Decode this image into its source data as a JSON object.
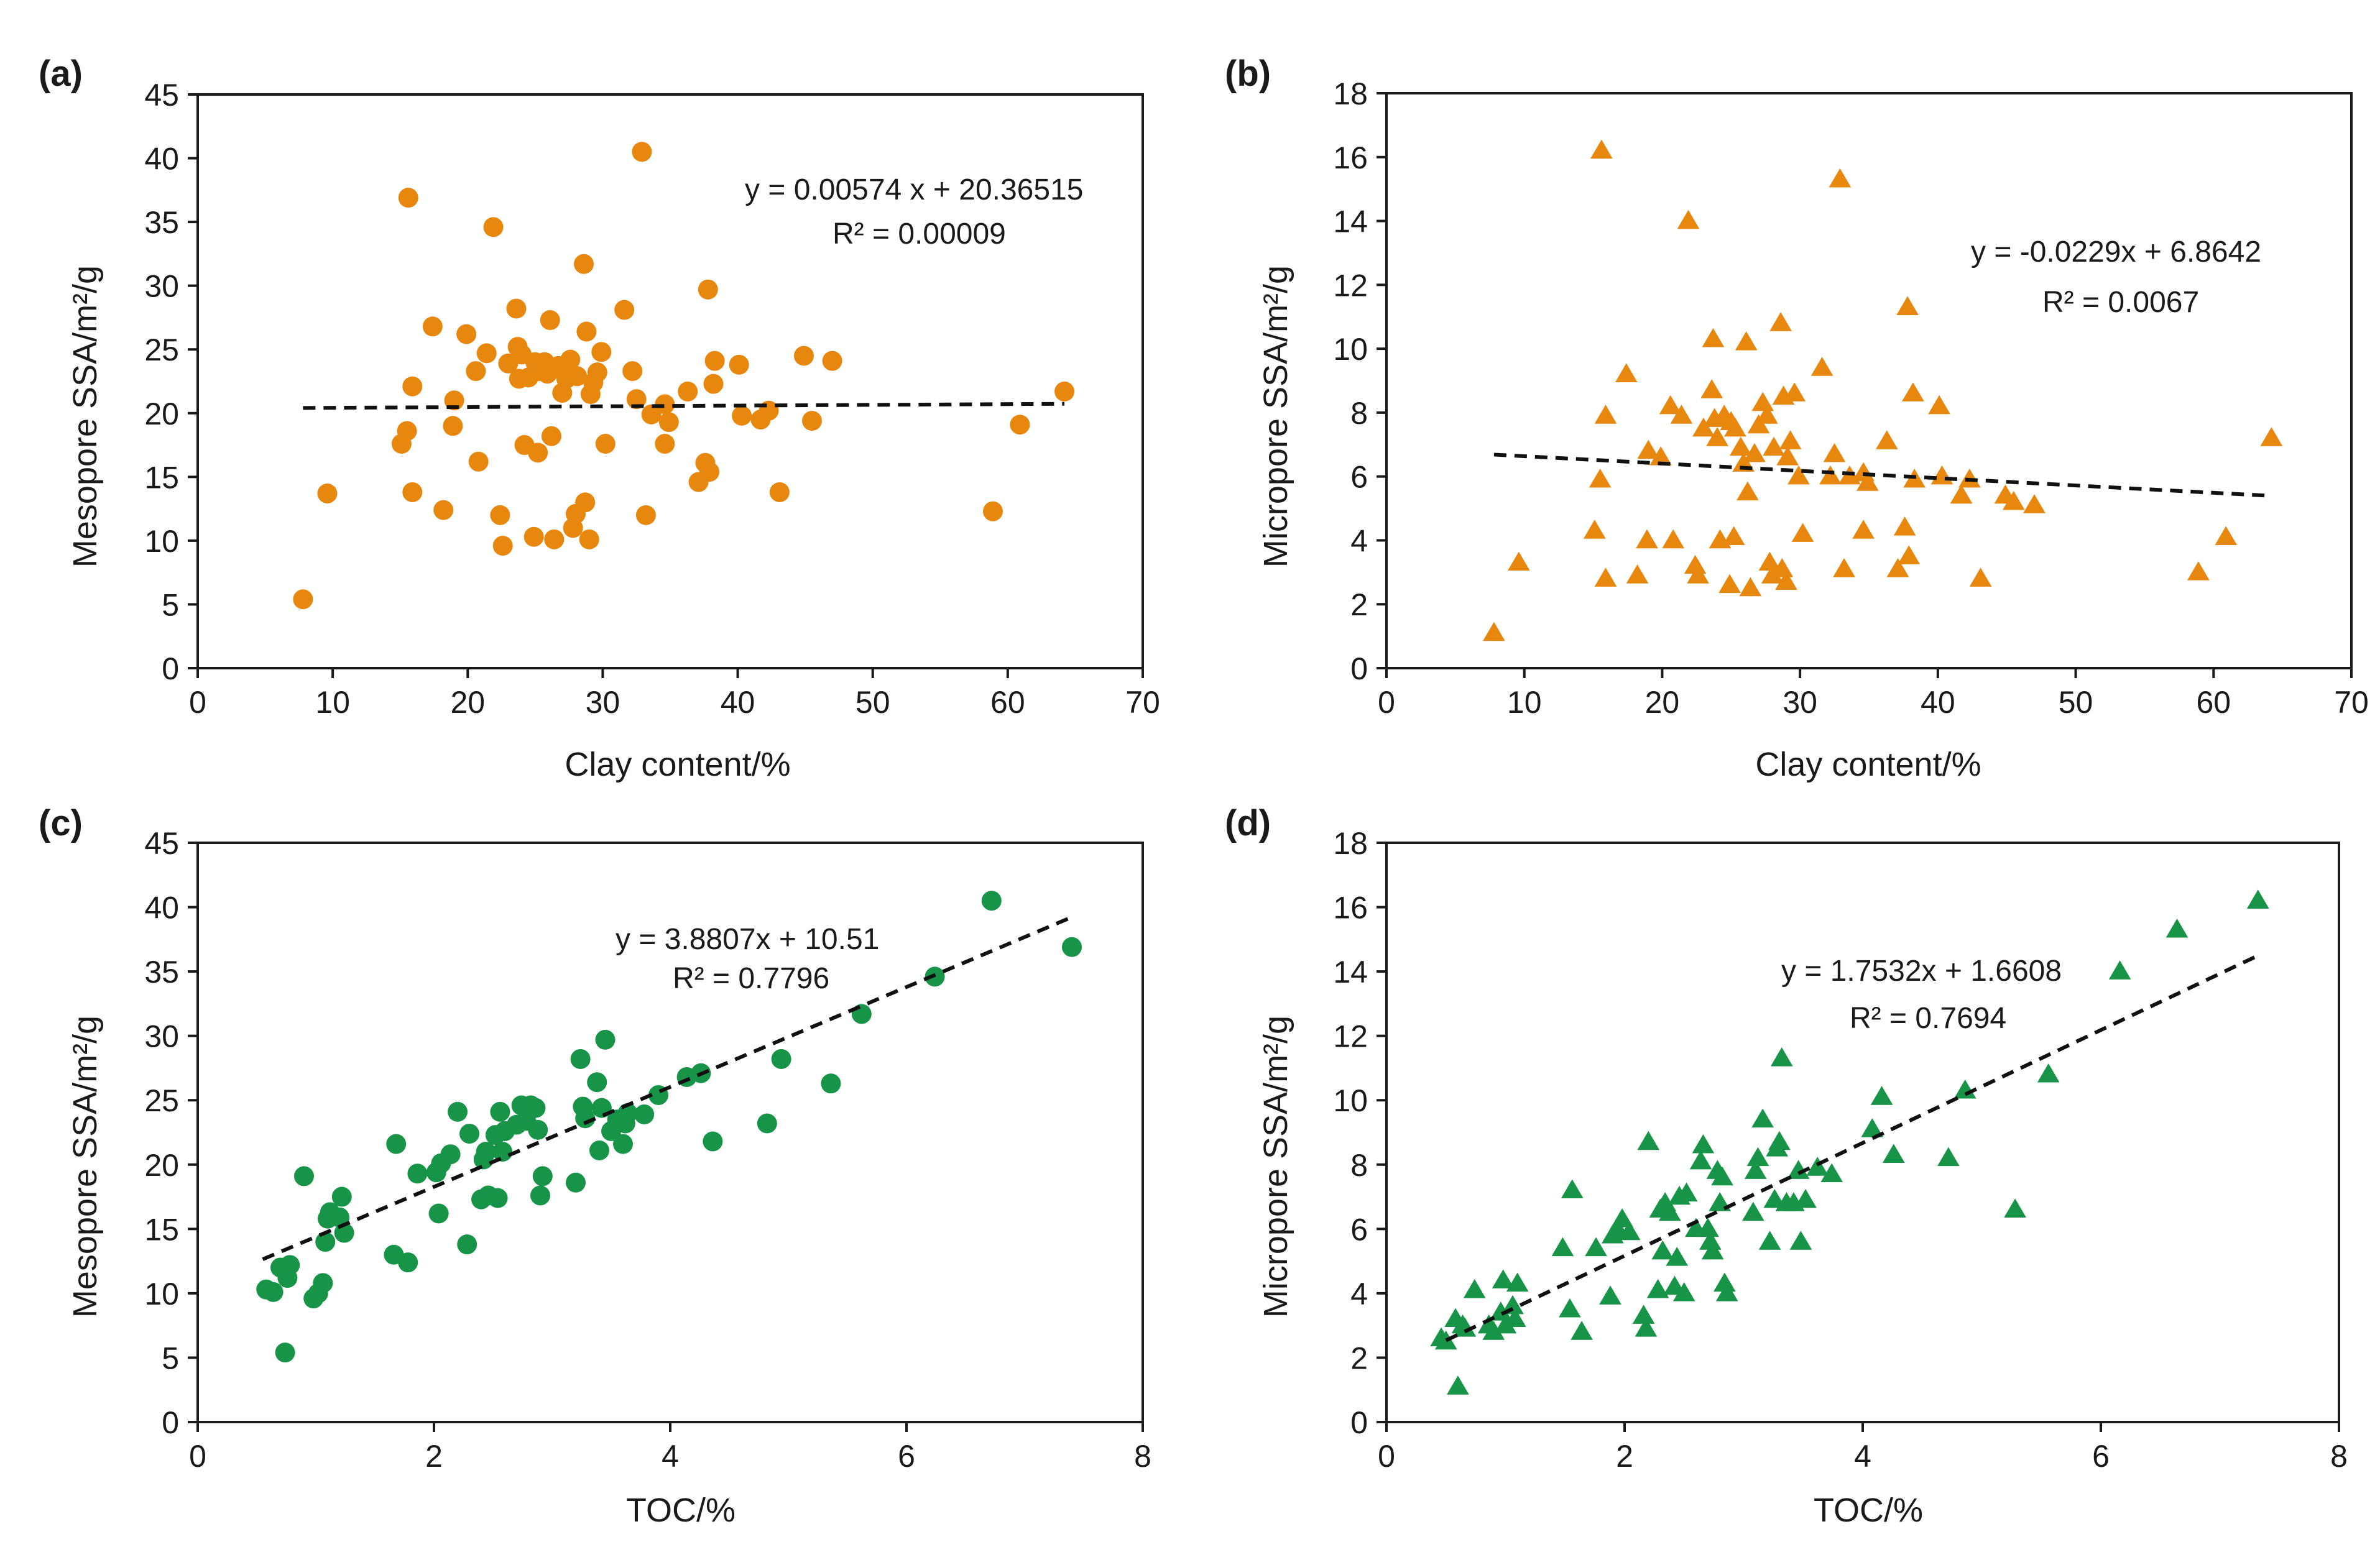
{
  "colors": {
    "orange": "#E8870E",
    "green": "#179447",
    "axis": "#1a1a1a",
    "trend": "#111111"
  },
  "chart_data": [
    {
      "id": "a",
      "panel_label": "(a)",
      "type": "scatter",
      "marker": "circle",
      "color": "#E8870E",
      "xlabel": "Clay content/%",
      "ylabel": "Mesopore SSA/m²/g",
      "xlim": [
        0,
        70
      ],
      "ylim": [
        0,
        45
      ],
      "xticks": [
        "0",
        "10",
        "20",
        "30",
        "40",
        "50",
        "60",
        "70"
      ],
      "yticks": [
        "0",
        "5",
        "10",
        "15",
        "20",
        "25",
        "30",
        "35",
        "40",
        "45"
      ],
      "trendline": {
        "slope": 0.00574,
        "intercept": 20.36515,
        "x_range": [
          7.8,
          64.2
        ]
      },
      "equation": "y = 0.00574 x + 20.36515",
      "r2": "R² = 0.00009",
      "points": [
        [
          7.8,
          5.4
        ],
        [
          9.6,
          13.7
        ],
        [
          15.1,
          17.6
        ],
        [
          15.5,
          18.6
        ],
        [
          15.6,
          36.9
        ],
        [
          15.9,
          22.1
        ],
        [
          15.9,
          13.8
        ],
        [
          17.4,
          26.8
        ],
        [
          18.2,
          12.4
        ],
        [
          18.9,
          19.0
        ],
        [
          19.0,
          21.0
        ],
        [
          19.9,
          26.2
        ],
        [
          20.6,
          23.3
        ],
        [
          20.8,
          16.2
        ],
        [
          21.4,
          24.7
        ],
        [
          21.9,
          34.6
        ],
        [
          22.4,
          12.0
        ],
        [
          22.6,
          9.6
        ],
        [
          23.0,
          23.9
        ],
        [
          23.6,
          28.2
        ],
        [
          23.7,
          25.2
        ],
        [
          23.8,
          22.7
        ],
        [
          24.0,
          24.6
        ],
        [
          24.2,
          17.5
        ],
        [
          24.5,
          22.8
        ],
        [
          24.9,
          10.3
        ],
        [
          25.0,
          24.0
        ],
        [
          25.2,
          16.9
        ],
        [
          25.3,
          23.3
        ],
        [
          25.7,
          24.0
        ],
        [
          25.9,
          23.1
        ],
        [
          26.1,
          27.3
        ],
        [
          26.2,
          18.2
        ],
        [
          26.4,
          10.1
        ],
        [
          26.7,
          23.7
        ],
        [
          27.0,
          21.6
        ],
        [
          27.3,
          22.7
        ],
        [
          27.6,
          24.2
        ],
        [
          27.8,
          11.0
        ],
        [
          28.0,
          12.1
        ],
        [
          28.1,
          22.9
        ],
        [
          28.6,
          31.7
        ],
        [
          28.7,
          13.0
        ],
        [
          28.8,
          26.4
        ],
        [
          29.0,
          10.1
        ],
        [
          29.1,
          21.5
        ],
        [
          29.3,
          22.4
        ],
        [
          29.6,
          23.2
        ],
        [
          29.9,
          24.8
        ],
        [
          30.2,
          17.6
        ],
        [
          31.6,
          28.1
        ],
        [
          32.2,
          23.3
        ],
        [
          32.5,
          21.1
        ],
        [
          32.9,
          40.5
        ],
        [
          33.2,
          12.0
        ],
        [
          33.6,
          19.9
        ],
        [
          34.6,
          20.7
        ],
        [
          34.9,
          19.3
        ],
        [
          34.6,
          17.6
        ],
        [
          36.3,
          21.7
        ],
        [
          37.1,
          14.6
        ],
        [
          37.6,
          16.1
        ],
        [
          37.8,
          29.7
        ],
        [
          37.9,
          15.4
        ],
        [
          38.2,
          22.3
        ],
        [
          38.3,
          24.1
        ],
        [
          40.1,
          23.8
        ],
        [
          40.3,
          19.8
        ],
        [
          41.7,
          19.5
        ],
        [
          42.3,
          20.2
        ],
        [
          43.1,
          13.8
        ],
        [
          44.9,
          24.5
        ],
        [
          45.5,
          19.4
        ],
        [
          47.0,
          24.1
        ],
        [
          58.9,
          12.3
        ],
        [
          60.9,
          19.1
        ],
        [
          64.2,
          21.7
        ]
      ]
    },
    {
      "id": "b",
      "panel_label": "(b)",
      "type": "scatter",
      "marker": "triangle",
      "color": "#E8870E",
      "xlabel": "Clay content/%",
      "ylabel": "Micropore SSA/m²/g",
      "xlim": [
        0,
        70
      ],
      "ylim": [
        0,
        18
      ],
      "xticks": [
        "0",
        "10",
        "20",
        "30",
        "40",
        "50",
        "60",
        "70"
      ],
      "yticks": [
        "0",
        "2",
        "4",
        "6",
        "8",
        "10",
        "12",
        "14",
        "16",
        "18"
      ],
      "trendline": {
        "slope": -0.0229,
        "intercept": 6.8642,
        "x_range": [
          7.8,
          64.2
        ]
      },
      "equation": "y = -0.0229x + 6.8642",
      "r2": "R² = 0.0067",
      "points": [
        [
          7.8,
          1.1
        ],
        [
          9.6,
          3.3
        ],
        [
          15.1,
          4.3
        ],
        [
          15.5,
          5.9
        ],
        [
          15.6,
          16.2
        ],
        [
          15.9,
          2.8
        ],
        [
          15.9,
          7.9
        ],
        [
          17.4,
          9.2
        ],
        [
          18.2,
          2.9
        ],
        [
          18.9,
          4.0
        ],
        [
          19.0,
          6.8
        ],
        [
          19.9,
          6.6
        ],
        [
          20.6,
          8.2
        ],
        [
          20.8,
          4.0
        ],
        [
          21.4,
          7.9
        ],
        [
          21.9,
          14.0
        ],
        [
          22.4,
          3.2
        ],
        [
          22.6,
          2.9
        ],
        [
          23.0,
          7.5
        ],
        [
          23.6,
          8.7
        ],
        [
          23.7,
          10.3
        ],
        [
          23.8,
          7.8
        ],
        [
          24.0,
          7.2
        ],
        [
          24.2,
          4.0
        ],
        [
          24.5,
          7.9
        ],
        [
          24.9,
          2.6
        ],
        [
          25.0,
          7.7
        ],
        [
          25.2,
          4.1
        ],
        [
          25.3,
          7.5
        ],
        [
          25.7,
          6.9
        ],
        [
          25.9,
          6.4
        ],
        [
          26.1,
          10.2
        ],
        [
          26.2,
          5.5
        ],
        [
          26.4,
          2.5
        ],
        [
          26.7,
          6.7
        ],
        [
          27.0,
          7.6
        ],
        [
          27.3,
          8.3
        ],
        [
          27.6,
          7.9
        ],
        [
          27.8,
          3.3
        ],
        [
          28.0,
          2.9
        ],
        [
          28.1,
          6.9
        ],
        [
          28.6,
          10.8
        ],
        [
          28.7,
          3.1
        ],
        [
          28.8,
          8.5
        ],
        [
          29.0,
          2.7
        ],
        [
          29.1,
          6.6
        ],
        [
          29.3,
          7.1
        ],
        [
          29.6,
          8.6
        ],
        [
          29.9,
          6.0
        ],
        [
          30.2,
          4.2
        ],
        [
          31.6,
          9.4
        ],
        [
          32.2,
          6.0
        ],
        [
          32.5,
          6.7
        ],
        [
          32.9,
          15.3
        ],
        [
          33.2,
          3.1
        ],
        [
          33.6,
          6.0
        ],
        [
          34.6,
          6.1
        ],
        [
          34.9,
          5.8
        ],
        [
          34.6,
          4.3
        ],
        [
          36.3,
          7.1
        ],
        [
          37.1,
          3.1
        ],
        [
          37.6,
          4.4
        ],
        [
          37.8,
          11.3
        ],
        [
          37.9,
          3.5
        ],
        [
          38.2,
          8.6
        ],
        [
          38.3,
          5.9
        ],
        [
          40.1,
          8.2
        ],
        [
          40.3,
          6.0
        ],
        [
          41.7,
          5.4
        ],
        [
          42.3,
          5.9
        ],
        [
          43.1,
          2.8
        ],
        [
          44.9,
          5.4
        ],
        [
          45.5,
          5.2
        ],
        [
          47.0,
          5.1
        ],
        [
          58.9,
          3.0
        ],
        [
          60.9,
          4.1
        ],
        [
          64.2,
          7.2
        ]
      ]
    },
    {
      "id": "c",
      "panel_label": "(c)",
      "type": "scatter",
      "marker": "circle",
      "color": "#179447",
      "xlabel": "TOC/%",
      "ylabel": "Mesopore SSA/m²/g",
      "xlim": [
        0,
        8
      ],
      "ylim": [
        0,
        45
      ],
      "xticks": [
        "0",
        "2",
        "4",
        "6",
        "8"
      ],
      "yticks": [
        "0",
        "5",
        "10",
        "15",
        "20",
        "25",
        "30",
        "35",
        "40",
        "45"
      ],
      "trendline": {
        "slope": 3.8807,
        "intercept": 10.51,
        "x_range": [
          0.55,
          7.4
        ]
      },
      "equation": "y = 3.8807x + 10.51",
      "r2": "R² = 0.7796",
      "points": [
        [
          0.58,
          10.3
        ],
        [
          0.64,
          10.1
        ],
        [
          0.7,
          12.0
        ],
        [
          0.74,
          5.4
        ],
        [
          0.76,
          11.2
        ],
        [
          0.78,
          12.2
        ],
        [
          0.9,
          19.1
        ],
        [
          0.98,
          9.6
        ],
        [
          1.02,
          10.0
        ],
        [
          1.06,
          10.8
        ],
        [
          1.08,
          14.0
        ],
        [
          1.1,
          15.8
        ],
        [
          1.12,
          16.3
        ],
        [
          1.2,
          15.9
        ],
        [
          1.22,
          17.5
        ],
        [
          1.24,
          14.7
        ],
        [
          1.66,
          13.0
        ],
        [
          1.68,
          21.6
        ],
        [
          1.78,
          12.4
        ],
        [
          1.86,
          19.3
        ],
        [
          2.02,
          19.4
        ],
        [
          2.04,
          16.2
        ],
        [
          2.06,
          20.1
        ],
        [
          2.14,
          20.8
        ],
        [
          2.2,
          24.1
        ],
        [
          2.28,
          13.8
        ],
        [
          2.3,
          22.4
        ],
        [
          2.4,
          17.3
        ],
        [
          2.42,
          20.4
        ],
        [
          2.44,
          21.0
        ],
        [
          2.46,
          17.6
        ],
        [
          2.52,
          22.3
        ],
        [
          2.54,
          17.4
        ],
        [
          2.56,
          24.1
        ],
        [
          2.58,
          21.0
        ],
        [
          2.6,
          22.6
        ],
        [
          2.7,
          23.1
        ],
        [
          2.74,
          24.6
        ],
        [
          2.78,
          23.4
        ],
        [
          2.82,
          24.6
        ],
        [
          2.86,
          24.4
        ],
        [
          2.88,
          22.7
        ],
        [
          2.9,
          17.6
        ],
        [
          2.92,
          19.1
        ],
        [
          3.2,
          18.6
        ],
        [
          3.24,
          28.2
        ],
        [
          3.26,
          24.5
        ],
        [
          3.28,
          23.6
        ],
        [
          3.38,
          26.4
        ],
        [
          3.4,
          21.1
        ],
        [
          3.42,
          24.4
        ],
        [
          3.45,
          29.7
        ],
        [
          3.5,
          22.6
        ],
        [
          3.55,
          23.5
        ],
        [
          3.6,
          21.6
        ],
        [
          3.62,
          23.2
        ],
        [
          3.64,
          24.0
        ],
        [
          3.78,
          23.9
        ],
        [
          3.9,
          25.4
        ],
        [
          4.14,
          26.8
        ],
        [
          4.26,
          27.1
        ],
        [
          4.36,
          21.8
        ],
        [
          4.82,
          23.2
        ],
        [
          4.94,
          28.2
        ],
        [
          5.36,
          26.3
        ],
        [
          5.62,
          31.7
        ],
        [
          6.24,
          34.6
        ],
        [
          6.72,
          40.5
        ],
        [
          7.4,
          36.9
        ]
      ]
    },
    {
      "id": "d",
      "panel_label": "(d)",
      "type": "scatter",
      "marker": "triangle",
      "color": "#179447",
      "xlabel": "TOC/%",
      "ylabel": "Micropore SSA/m²/g",
      "xlim": [
        0,
        8
      ],
      "ylim": [
        0,
        18
      ],
      "xticks": [
        "0",
        "2",
        "4",
        "6",
        "8"
      ],
      "yticks": [
        "0",
        "2",
        "4",
        "6",
        "8",
        "10",
        "12",
        "14",
        "16",
        "18"
      ],
      "trendline": {
        "slope": 1.7532,
        "intercept": 1.6608,
        "x_range": [
          0.5,
          7.3
        ]
      },
      "equation": "y = 1.7532x + 1.6608",
      "r2": "R² = 0.7694",
      "points": [
        [
          0.46,
          2.6
        ],
        [
          0.5,
          2.5
        ],
        [
          0.58,
          3.2
        ],
        [
          0.6,
          1.1
        ],
        [
          0.64,
          3.0
        ],
        [
          0.66,
          2.9
        ],
        [
          0.74,
          4.1
        ],
        [
          0.86,
          3.0
        ],
        [
          0.9,
          2.8
        ],
        [
          0.96,
          3.4
        ],
        [
          0.98,
          4.4
        ],
        [
          1.0,
          3.0
        ],
        [
          1.06,
          3.6
        ],
        [
          1.08,
          3.2
        ],
        [
          1.1,
          4.3
        ],
        [
          1.48,
          5.4
        ],
        [
          1.54,
          3.5
        ],
        [
          1.56,
          7.2
        ],
        [
          1.64,
          2.8
        ],
        [
          1.76,
          5.4
        ],
        [
          1.88,
          3.9
        ],
        [
          1.9,
          5.8
        ],
        [
          1.94,
          6.0
        ],
        [
          1.98,
          6.3
        ],
        [
          2.04,
          5.9
        ],
        [
          2.16,
          3.3
        ],
        [
          2.18,
          2.9
        ],
        [
          2.2,
          8.7
        ],
        [
          2.28,
          4.1
        ],
        [
          2.3,
          6.6
        ],
        [
          2.32,
          5.3
        ],
        [
          2.34,
          6.8
        ],
        [
          2.38,
          6.5
        ],
        [
          2.42,
          4.2
        ],
        [
          2.44,
          5.1
        ],
        [
          2.46,
          7.0
        ],
        [
          2.5,
          4.0
        ],
        [
          2.52,
          7.1
        ],
        [
          2.6,
          6.0
        ],
        [
          2.64,
          8.1
        ],
        [
          2.66,
          8.6
        ],
        [
          2.7,
          6.0
        ],
        [
          2.72,
          5.6
        ],
        [
          2.74,
          5.3
        ],
        [
          2.78,
          7.8
        ],
        [
          2.8,
          6.8
        ],
        [
          2.82,
          7.6
        ],
        [
          2.84,
          4.3
        ],
        [
          2.86,
          4.0
        ],
        [
          3.08,
          6.5
        ],
        [
          3.1,
          7.8
        ],
        [
          3.12,
          8.2
        ],
        [
          3.16,
          9.4
        ],
        [
          3.22,
          5.6
        ],
        [
          3.26,
          6.9
        ],
        [
          3.28,
          8.5
        ],
        [
          3.3,
          8.7
        ],
        [
          3.32,
          11.3
        ],
        [
          3.36,
          6.8
        ],
        [
          3.42,
          6.8
        ],
        [
          3.46,
          7.8
        ],
        [
          3.48,
          5.6
        ],
        [
          3.52,
          6.9
        ],
        [
          3.62,
          7.9
        ],
        [
          3.74,
          7.7
        ],
        [
          4.08,
          9.1
        ],
        [
          4.16,
          10.1
        ],
        [
          4.26,
          8.3
        ],
        [
          4.72,
          8.2
        ],
        [
          4.86,
          10.3
        ],
        [
          5.28,
          6.6
        ],
        [
          5.56,
          10.8
        ],
        [
          6.16,
          14.0
        ],
        [
          6.64,
          15.3
        ],
        [
          7.32,
          16.2
        ]
      ]
    }
  ]
}
